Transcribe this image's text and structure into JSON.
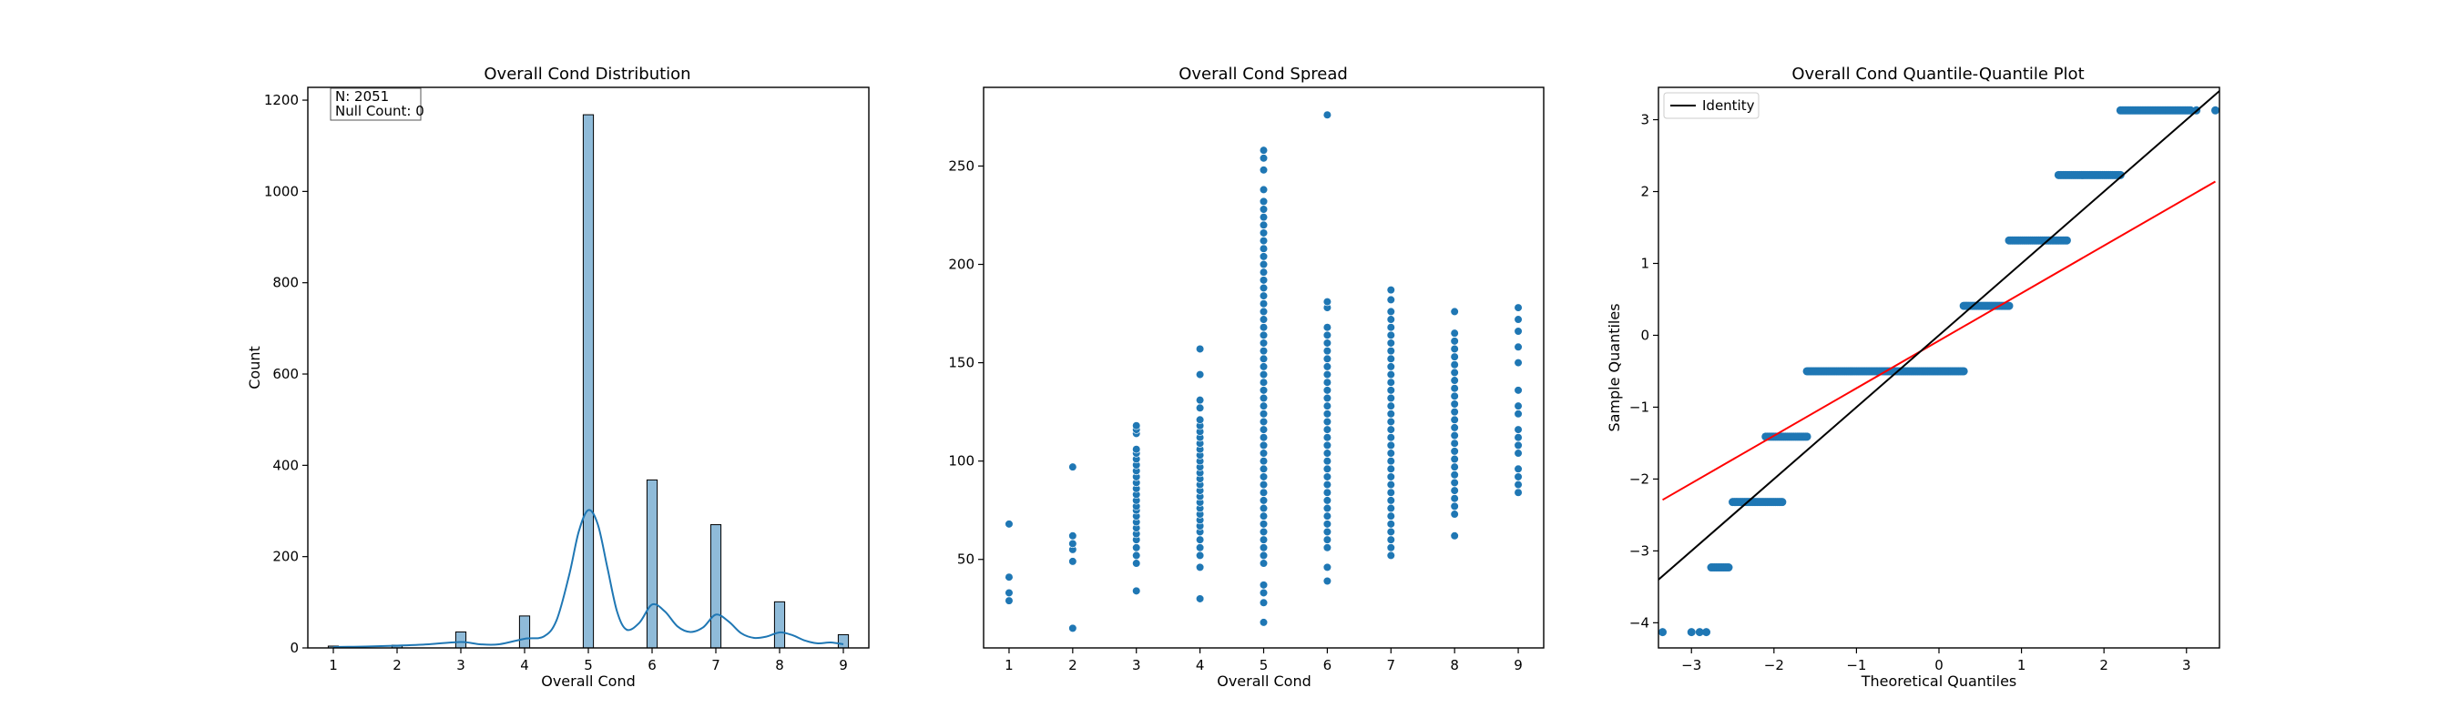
{
  "colors": {
    "hist_fill": "#1f77b4",
    "hist_fill_opacity": 0.5,
    "hist_edge": "#000000",
    "kde_line": "#1f77b4",
    "scatter_point": "#1f77b4",
    "qq_point": "#1f77b4",
    "identity_line": "#000000",
    "fit_line": "#ff0000"
  },
  "chart_data": [
    {
      "type": "bar",
      "title": "Overall Cond Distribution",
      "xlabel": "Overall Cond",
      "ylabel": "Count",
      "xlim": [
        0.6,
        9.4
      ],
      "ylim": [
        0,
        1228
      ],
      "xticks": [
        1,
        2,
        3,
        4,
        5,
        6,
        7,
        8,
        9
      ],
      "yticks": [
        0,
        200,
        400,
        600,
        800,
        1000,
        1200
      ],
      "bin_width": 0.16,
      "categories": [
        1,
        2,
        3,
        4,
        5,
        6,
        7,
        8,
        9
      ],
      "values": [
        4,
        6,
        35,
        70,
        1168,
        368,
        270,
        101,
        29
      ],
      "kde": {
        "x": [
          1,
          1.5,
          2,
          2.5,
          3,
          3.3,
          3.6,
          4,
          4.3,
          4.5,
          4.7,
          4.85,
          5,
          5.15,
          5.3,
          5.45,
          5.6,
          5.8,
          6,
          6.2,
          6.4,
          6.6,
          6.8,
          7,
          7.2,
          7.4,
          7.6,
          7.8,
          8,
          8.2,
          8.4,
          8.6,
          8.8,
          9
        ],
        "y": [
          2,
          3,
          5,
          8,
          13,
          8,
          8,
          20,
          25,
          60,
          160,
          255,
          302,
          270,
          175,
          80,
          40,
          55,
          95,
          80,
          47,
          35,
          45,
          73,
          58,
          32,
          22,
          25,
          34,
          28,
          16,
          10,
          12,
          8
        ]
      },
      "annotation": [
        "N: 2051",
        "Null Count: 0"
      ]
    },
    {
      "type": "scatter",
      "title": "Overall Cond Spread",
      "xlabel": "Overall Cond",
      "ylabel": "",
      "xlim": [
        0.6,
        9.4
      ],
      "ylim": [
        5,
        290
      ],
      "xticks": [
        1,
        2,
        3,
        4,
        5,
        6,
        7,
        8,
        9
      ],
      "yticks": [
        50,
        100,
        150,
        200,
        250
      ],
      "points": [
        {
          "x": 1,
          "y": [
            29,
            33,
            41,
            68
          ]
        },
        {
          "x": 2,
          "y": [
            15,
            49,
            55,
            58,
            62,
            97
          ]
        },
        {
          "x": 3,
          "y": [
            34,
            48,
            52,
            56,
            60,
            63,
            66,
            69,
            72,
            75,
            77,
            80,
            83,
            86,
            89,
            92,
            95,
            98,
            101,
            104,
            106,
            114,
            116,
            118
          ]
        },
        {
          "x": 4,
          "y": [
            30,
            46,
            52,
            56,
            60,
            64,
            67,
            70,
            73,
            76,
            79,
            82,
            85,
            88,
            91,
            94,
            97,
            100,
            103,
            106,
            109,
            112,
            115,
            118,
            121,
            127,
            131,
            144,
            157
          ]
        },
        {
          "x": 5,
          "y": [
            18,
            28,
            33,
            37,
            48,
            52,
            56,
            60,
            64,
            68,
            72,
            76,
            80,
            84,
            88,
            92,
            96,
            100,
            104,
            108,
            112,
            116,
            120,
            124,
            128,
            132,
            136,
            140,
            144,
            148,
            152,
            156,
            160,
            164,
            168,
            172,
            176,
            180,
            184,
            188,
            192,
            196,
            200,
            204,
            208,
            212,
            216,
            220,
            224,
            228,
            232,
            238,
            248,
            254,
            258
          ]
        },
        {
          "x": 6,
          "y": [
            39,
            46,
            56,
            60,
            64,
            68,
            72,
            76,
            80,
            84,
            88,
            92,
            96,
            100,
            104,
            108,
            112,
            116,
            120,
            124,
            128,
            132,
            136,
            140,
            144,
            148,
            152,
            156,
            160,
            164,
            168,
            178,
            181,
            276
          ]
        },
        {
          "x": 7,
          "y": [
            52,
            56,
            60,
            64,
            68,
            72,
            76,
            80,
            84,
            88,
            92,
            96,
            100,
            104,
            108,
            112,
            116,
            120,
            124,
            128,
            132,
            136,
            140,
            144,
            148,
            152,
            156,
            160,
            164,
            168,
            172,
            176,
            182,
            187
          ]
        },
        {
          "x": 8,
          "y": [
            62,
            73,
            77,
            81,
            85,
            89,
            93,
            97,
            101,
            105,
            109,
            113,
            117,
            121,
            125,
            129,
            133,
            137,
            141,
            145,
            149,
            153,
            157,
            161,
            165,
            176
          ]
        },
        {
          "x": 9,
          "y": [
            84,
            88,
            92,
            96,
            104,
            108,
            112,
            116,
            124,
            128,
            136,
            150,
            158,
            166,
            172,
            178
          ]
        }
      ]
    },
    {
      "type": "scatter",
      "title": "Overall Cond Quantile-Quantile Plot",
      "xlabel": "Theoretical Quantiles",
      "ylabel": "Sample Quantiles",
      "xlim": [
        -3.4,
        3.4
      ],
      "ylim": [
        -4.35,
        3.45
      ],
      "xticks": [
        -3,
        -2,
        -1,
        0,
        1,
        2,
        3
      ],
      "yticks": [
        -4,
        -3,
        -2,
        -1,
        0,
        1,
        2,
        3
      ],
      "legend": {
        "entries": [
          "Identity"
        ],
        "position": "upper-left"
      },
      "steps": [
        {
          "y": -4.13,
          "x_points": [
            -3.35,
            -3.0,
            -2.9,
            -2.82
          ]
        },
        {
          "y": -3.23,
          "x_from": -2.76,
          "x_to": -2.55
        },
        {
          "y": -2.32,
          "x_from": -2.5,
          "x_to": -1.9
        },
        {
          "y": -1.41,
          "x_from": -2.1,
          "x_to": -1.6
        },
        {
          "y": -0.5,
          "x_from": -1.6,
          "x_to": 0.3
        },
        {
          "y": 0.41,
          "x_from": 0.3,
          "x_to": 0.85
        },
        {
          "y": 1.32,
          "x_from": 0.85,
          "x_to": 1.55
        },
        {
          "y": 2.23,
          "x_from": 1.45,
          "x_to": 2.2
        },
        {
          "y": 3.13,
          "x_from": 2.2,
          "x_to": 3.05,
          "extra_points": [
            3.12,
            3.35
          ]
        }
      ],
      "identity_line": {
        "x": [
          -3.4,
          3.4
        ],
        "y": [
          -3.4,
          3.4
        ]
      },
      "fit_line": {
        "x": [
          -3.35,
          3.35
        ],
        "y": [
          -2.29,
          2.14
        ]
      }
    }
  ]
}
